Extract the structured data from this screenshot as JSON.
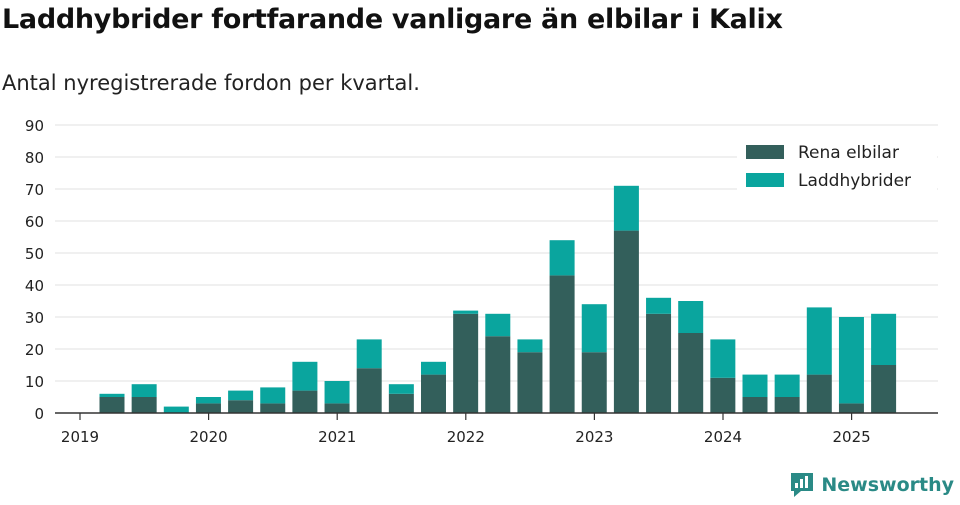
{
  "title": "Laddhybrider fortfarande vanligare än elbilar i Kalix",
  "subtitle": "Antal nyregistrerade fordon per kvartal.",
  "brand": "Newsworthy",
  "colors": {
    "elbil": "#335f5b",
    "hybrid": "#0aa59e",
    "grid": "#e0e0e0",
    "axis": "#333333",
    "brand": "#2a8a86"
  },
  "chart_data": {
    "type": "bar",
    "stacked": true,
    "categories": [
      "2019Q2",
      "2019Q3",
      "2019Q4",
      "2020Q1",
      "2020Q2",
      "2020Q3",
      "2020Q4",
      "2021Q1",
      "2021Q2",
      "2021Q3",
      "2021Q4",
      "2022Q1",
      "2022Q2",
      "2022Q3",
      "2022Q4",
      "2023Q1",
      "2023Q2",
      "2023Q3",
      "2023Q4",
      "2024Q1",
      "2024Q2",
      "2024Q3",
      "2024Q4",
      "2025Q1",
      "2025Q2"
    ],
    "series": [
      {
        "name": "Rena elbilar",
        "values": [
          5,
          5,
          0,
          3,
          4,
          3,
          7,
          3,
          14,
          6,
          12,
          31,
          24,
          19,
          43,
          19,
          57,
          31,
          25,
          11,
          5,
          5,
          12,
          3,
          15
        ]
      },
      {
        "name": "Laddhybrider",
        "values": [
          1,
          4,
          2,
          2,
          3,
          5,
          9,
          7,
          9,
          3,
          4,
          1,
          7,
          4,
          11,
          15,
          14,
          5,
          10,
          12,
          7,
          7,
          21,
          27,
          16
        ]
      }
    ],
    "x_tick_labels": [
      "2019",
      "2020",
      "2021",
      "2022",
      "2023",
      "2024",
      "2025"
    ],
    "y_ticks": [
      0,
      10,
      20,
      30,
      40,
      50,
      60,
      70,
      80,
      90
    ],
    "ylim": [
      0,
      90
    ],
    "grid": true,
    "legend_position": "top-right"
  }
}
